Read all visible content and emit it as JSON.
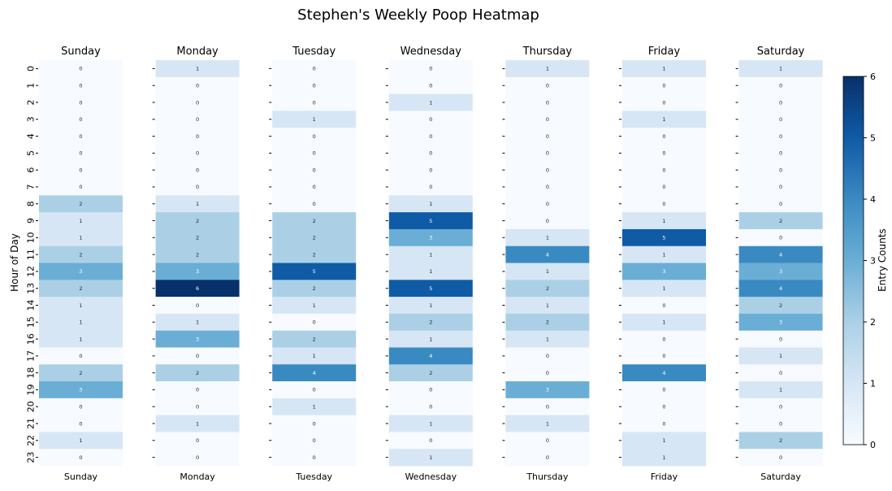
{
  "chart_data": {
    "type": "heatmap",
    "title": "Stephen's Weekly Poop Heatmap",
    "ylabel": "Hour of Day",
    "colorbar_label": "Entry Counts",
    "colorbar_range": [
      0,
      6
    ],
    "colorbar_ticks": [
      "0",
      "1",
      "2",
      "3",
      "4",
      "5",
      "6"
    ],
    "hours": [
      "0",
      "1",
      "2",
      "3",
      "4",
      "5",
      "6",
      "7",
      "8",
      "9",
      "10",
      "11",
      "12",
      "13",
      "14",
      "15",
      "16",
      "17",
      "18",
      "19",
      "20",
      "21",
      "22",
      "23"
    ],
    "days": [
      {
        "name": "Sunday",
        "counts": [
          0,
          0,
          0,
          0,
          0,
          0,
          0,
          0,
          2,
          1,
          1,
          2,
          3,
          2,
          1,
          1,
          1,
          0,
          2,
          3,
          0,
          0,
          1,
          0
        ]
      },
      {
        "name": "Monday",
        "counts": [
          1,
          0,
          0,
          0,
          0,
          0,
          0,
          0,
          1,
          2,
          2,
          2,
          3,
          6,
          0,
          1,
          3,
          0,
          2,
          0,
          0,
          1,
          0,
          0
        ]
      },
      {
        "name": "Tuesday",
        "counts": [
          0,
          0,
          0,
          1,
          0,
          0,
          0,
          0,
          0,
          2,
          2,
          2,
          5,
          2,
          1,
          0,
          2,
          1,
          4,
          0,
          1,
          0,
          0,
          0
        ]
      },
      {
        "name": "Wednesday",
        "counts": [
          0,
          0,
          1,
          0,
          0,
          0,
          0,
          0,
          1,
          5,
          3,
          1,
          1,
          5,
          1,
          2,
          1,
          4,
          2,
          0,
          0,
          1,
          0,
          1
        ]
      },
      {
        "name": "Thursday",
        "counts": [
          1,
          0,
          0,
          0,
          0,
          0,
          0,
          0,
          0,
          0,
          1,
          4,
          1,
          2,
          1,
          2,
          1,
          0,
          0,
          3,
          0,
          1,
          0,
          0
        ]
      },
      {
        "name": "Friday",
        "counts": [
          1,
          0,
          0,
          1,
          0,
          0,
          0,
          0,
          0,
          1,
          5,
          1,
          3,
          1,
          0,
          1,
          0,
          0,
          4,
          0,
          0,
          0,
          1,
          1
        ]
      },
      {
        "name": "Saturday",
        "counts": [
          1,
          0,
          0,
          0,
          0,
          0,
          0,
          0,
          0,
          2,
          0,
          4,
          3,
          4,
          2,
          3,
          0,
          1,
          0,
          1,
          0,
          0,
          2,
          0
        ]
      }
    ],
    "colors": {
      "scale": [
        "#f7fbff",
        "#d6e6f5",
        "#abd0e6",
        "#6aaed6",
        "#3a8ac2",
        "#0f5ba5",
        "#08306b"
      ],
      "light_text": "#ffffff",
      "dark_text": "#262626"
    },
    "grid": false
  }
}
